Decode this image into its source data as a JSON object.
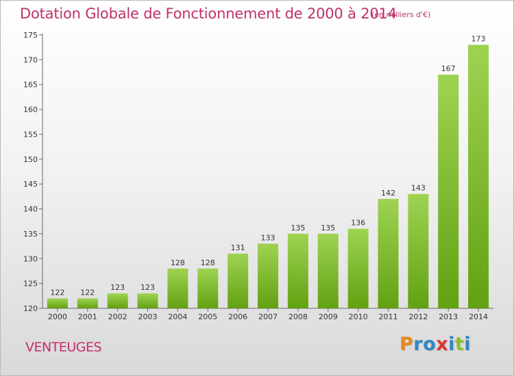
{
  "header": {
    "title": "Dotation Globale de Fonctionnement de 2000 à 2014",
    "unit": "(en milliers d'€)"
  },
  "commune": "VENTEUGES",
  "logo": {
    "text": "Proxiti",
    "letters": [
      {
        "ch": "P",
        "color": "#e8891c"
      },
      {
        "ch": "r",
        "color": "#2f86c4"
      },
      {
        "ch": "o",
        "color": "#2f86c4"
      },
      {
        "ch": "x",
        "color": "#d9362b"
      },
      {
        "ch": "i",
        "color": "#2f86c4"
      },
      {
        "ch": "t",
        "color": "#8bc12d"
      },
      {
        "ch": "i",
        "color": "#2f86c4"
      }
    ]
  },
  "colors": {
    "bar_light": "#9ed352",
    "bar_dark": "#62a112",
    "text": "#c0306a"
  },
  "chart_data": {
    "type": "bar",
    "title": "Dotation Globale de Fonctionnement de 2000 à 2014",
    "subtitle": "(en milliers d'€)",
    "categories": [
      "2000",
      "2001",
      "2002",
      "2003",
      "2004",
      "2005",
      "2006",
      "2007",
      "2008",
      "2009",
      "2010",
      "2011",
      "2012",
      "2013",
      "2014"
    ],
    "values": [
      122,
      122,
      123,
      123,
      128,
      128,
      131,
      133,
      135,
      135,
      136,
      142,
      143,
      167,
      173
    ],
    "data_labels": [
      "122",
      "122",
      "123",
      "123",
      "128",
      "128",
      "131",
      "133",
      "135",
      "135",
      "136",
      "142",
      "143",
      "167",
      "173"
    ],
    "ylim": [
      120,
      175
    ],
    "yticks": [
      "120",
      "125",
      "130",
      "135",
      "140",
      "145",
      "150",
      "155",
      "160",
      "165",
      "170",
      "175"
    ],
    "grid": false
  }
}
